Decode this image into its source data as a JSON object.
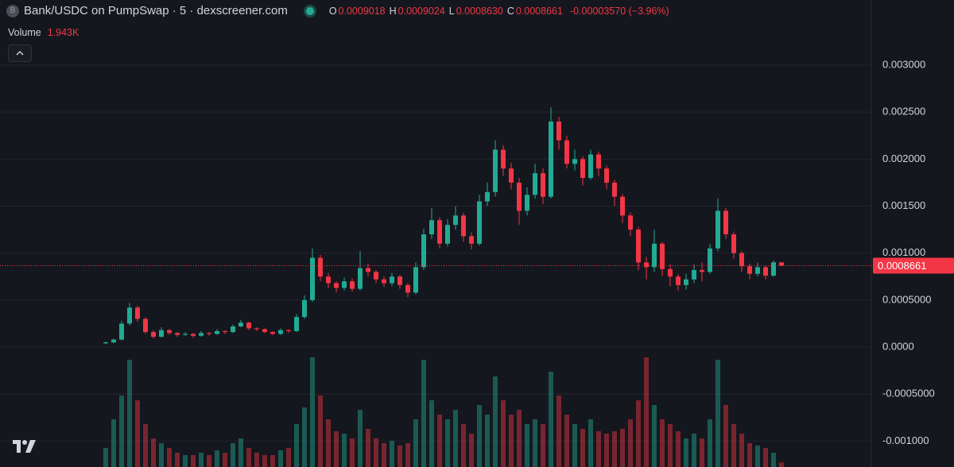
{
  "header": {
    "icon_letter": "B",
    "symbol_title": "Bank/USDC on PumpSwap · 5 · dexscreener.com",
    "ohlc": [
      {
        "key": "O",
        "value": "0.0009018"
      },
      {
        "key": "H",
        "value": "0.0009024"
      },
      {
        "key": "L",
        "value": "0.0008630"
      },
      {
        "key": "C",
        "value": "0.0008661"
      }
    ],
    "change": "-0.00003570 (−3.96%)",
    "volume_label": "Volume",
    "volume_value": "1.943K"
  },
  "chart_data": {
    "type": "candlestick",
    "open": [
      4e-05,
      5e-05,
      8e-05,
      0.00025,
      0.00042,
      0.0003,
      0.00016,
      0.00011,
      0.00018,
      0.00015,
      0.00013,
      0.00014,
      0.00012,
      0.00015,
      0.00014,
      0.00017,
      0.00016,
      0.00022,
      0.00026,
      0.0002,
      0.00019,
      0.00016,
      0.00014,
      0.00018,
      0.00017,
      0.00032,
      0.0005,
      0.00095,
      0.00075,
      0.00068,
      0.00063,
      0.0007,
      0.00062,
      0.00084,
      0.0008,
      0.00072,
      0.00068,
      0.00075,
      0.00066,
      0.00058,
      0.00085,
      0.0012,
      0.00135,
      0.0011,
      0.0013,
      0.0014,
      0.00118,
      0.0011,
      0.00155,
      0.00165,
      0.0021,
      0.0019,
      0.00175,
      0.00145,
      0.00162,
      0.00185,
      0.0016,
      0.0024,
      0.0022,
      0.00195,
      0.002,
      0.0018,
      0.00205,
      0.0019,
      0.00175,
      0.0016,
      0.0014,
      0.00125,
      0.0009,
      0.00085,
      0.0011,
      0.00083,
      0.00075,
      0.00066,
      0.00072,
      0.00082,
      0.0008,
      0.00105,
      0.00145,
      0.0012,
      0.001,
      0.00086,
      0.00078,
      0.00085,
      0.00076,
      0.0009018
    ],
    "high": [
      6e-05,
      9e-05,
      0.00028,
      0.00047,
      0.00044,
      0.00032,
      0.00018,
      0.00021,
      0.00019,
      0.00016,
      0.00016,
      0.00015,
      0.00017,
      0.00016,
      0.00019,
      0.00018,
      0.00024,
      0.00029,
      0.00027,
      0.00021,
      0.0002,
      0.00017,
      0.0002,
      0.00019,
      0.00035,
      0.00055,
      0.00105,
      0.00098,
      0.00079,
      0.0007,
      0.00074,
      0.00073,
      0.00102,
      0.00089,
      0.00082,
      0.00075,
      0.00079,
      0.00077,
      0.00068,
      0.0009,
      0.00126,
      0.00148,
      0.00138,
      0.00136,
      0.0015,
      0.00143,
      0.00122,
      0.00162,
      0.00175,
      0.0022,
      0.00215,
      0.00196,
      0.0018,
      0.0017,
      0.00195,
      0.0019,
      0.00255,
      0.00245,
      0.00225,
      0.0021,
      0.00203,
      0.0021,
      0.00208,
      0.00193,
      0.00178,
      0.00163,
      0.00143,
      0.00128,
      0.00096,
      0.00125,
      0.00112,
      0.00088,
      0.00078,
      0.00078,
      0.00088,
      0.0009,
      0.0011,
      0.00158,
      0.00148,
      0.00123,
      0.00102,
      0.00089,
      0.0009,
      0.00087,
      0.00092,
      0.0009024
    ],
    "low": [
      3e-05,
      4e-05,
      7e-05,
      0.00023,
      0.00027,
      0.00014,
      9e-05,
      0.0001,
      0.00013,
      0.00011,
      0.00012,
      0.0001,
      0.00011,
      0.00012,
      0.00013,
      0.00014,
      0.00015,
      0.00021,
      0.00018,
      0.00017,
      0.00015,
      0.00013,
      0.00013,
      0.00015,
      0.00016,
      0.0003,
      0.00048,
      0.0007,
      0.00063,
      0.00058,
      0.0006,
      0.00059,
      0.0006,
      0.00075,
      0.00068,
      0.00064,
      0.00065,
      0.00062,
      0.00053,
      0.00056,
      0.00082,
      0.00115,
      0.00105,
      0.00107,
      0.00125,
      0.00112,
      0.00104,
      0.00108,
      0.0015,
      0.0016,
      0.00182,
      0.00168,
      0.0013,
      0.0014,
      0.00158,
      0.00152,
      0.00158,
      0.0021,
      0.0019,
      0.00188,
      0.00172,
      0.00178,
      0.00182,
      0.00168,
      0.0015,
      0.00132,
      0.00118,
      0.00082,
      0.00072,
      0.0008,
      0.00076,
      0.00065,
      0.0006,
      0.00061,
      0.00068,
      0.0007,
      0.00078,
      0.00102,
      0.00115,
      0.00094,
      0.0008,
      0.00072,
      0.00075,
      0.00072,
      0.00075,
      0.000863
    ],
    "close": [
      5e-05,
      8e-05,
      0.00025,
      0.00042,
      0.0003,
      0.00016,
      0.00011,
      0.00018,
      0.00015,
      0.00013,
      0.00014,
      0.00012,
      0.00015,
      0.00014,
      0.00017,
      0.00016,
      0.00022,
      0.00026,
      0.0002,
      0.00019,
      0.00016,
      0.00014,
      0.00018,
      0.00017,
      0.00032,
      0.0005,
      0.00095,
      0.00075,
      0.00068,
      0.00063,
      0.0007,
      0.00062,
      0.00084,
      0.0008,
      0.00072,
      0.00068,
      0.00075,
      0.00066,
      0.00058,
      0.00085,
      0.0012,
      0.00135,
      0.0011,
      0.0013,
      0.0014,
      0.00118,
      0.0011,
      0.00155,
      0.00165,
      0.0021,
      0.0019,
      0.00175,
      0.00145,
      0.00162,
      0.00185,
      0.0016,
      0.0024,
      0.0022,
      0.00195,
      0.002,
      0.0018,
      0.00205,
      0.0019,
      0.00175,
      0.0016,
      0.0014,
      0.00125,
      0.0009,
      0.00085,
      0.0011,
      0.00083,
      0.00075,
      0.00066,
      0.00072,
      0.00082,
      0.0008,
      0.00105,
      0.00145,
      0.0012,
      0.001,
      0.00086,
      0.00078,
      0.00085,
      0.00076,
      0.0009018,
      0.0008661
    ],
    "volume": [
      8000,
      20000,
      30000,
      45000,
      28000,
      18000,
      12000,
      10000,
      8000,
      6000,
      5000,
      5000,
      6000,
      5000,
      7000,
      6000,
      10000,
      12000,
      8000,
      6000,
      5000,
      5000,
      7000,
      8000,
      18000,
      25000,
      46000,
      30000,
      20000,
      15000,
      14000,
      12000,
      24000,
      16000,
      12000,
      10000,
      11000,
      9000,
      10000,
      20000,
      45000,
      28000,
      22000,
      20000,
      24000,
      18000,
      14000,
      26000,
      22000,
      38000,
      28000,
      22000,
      24000,
      18000,
      20000,
      18000,
      40000,
      30000,
      22000,
      18000,
      16000,
      20000,
      15000,
      14000,
      15000,
      16000,
      20000,
      28000,
      46000,
      26000,
      20000,
      18000,
      15000,
      12000,
      14000,
      12000,
      20000,
      45000,
      26000,
      18000,
      14000,
      10000,
      9000,
      8000,
      6000,
      1943
    ],
    "volume_lim": [
      0,
      50000
    ],
    "ylim": [
      -0.001276,
      0.003693
    ],
    "yticks": [
      {
        "value": -0.001,
        "label": "-0.001000"
      },
      {
        "value": -0.0005,
        "label": "-0.0005000"
      },
      {
        "value": 0,
        "label": "0.0000"
      },
      {
        "value": 0.0005,
        "label": "0.0005000"
      },
      {
        "value": 0.001,
        "label": "0.001000"
      },
      {
        "value": 0.0015,
        "label": "0.001500"
      },
      {
        "value": 0.002,
        "label": "0.002000"
      },
      {
        "value": 0.0025,
        "label": "0.002500"
      },
      {
        "value": 0.003,
        "label": "0.003000"
      }
    ],
    "grid": true,
    "last_price": 0.0008661,
    "up_color": "#22ab94",
    "down_color": "#f23645"
  }
}
